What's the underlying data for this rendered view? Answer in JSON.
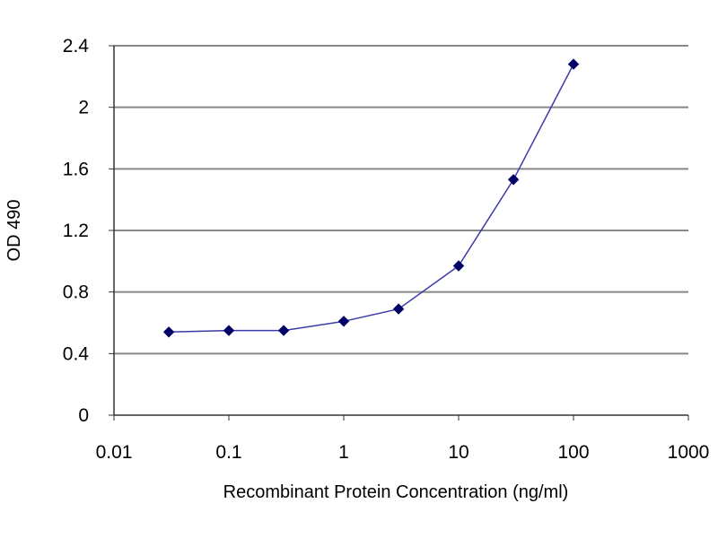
{
  "chart_data": {
    "type": "line",
    "title": "",
    "xlabel": "Recombinant Protein Concentration (ng/ml)",
    "ylabel": "OD 490",
    "x_scale": "log",
    "xlim": [
      0.01,
      1000
    ],
    "ylim": [
      0,
      2.4
    ],
    "x_ticks": [
      "0.01",
      "0.1",
      "1",
      "10",
      "100",
      "1000"
    ],
    "y_ticks": [
      "0",
      "0.4",
      "0.8",
      "1.2",
      "1.6",
      "2",
      "2.4"
    ],
    "grid": "horizontal",
    "legend": "none",
    "series": [
      {
        "x": [
          0.03,
          0.1,
          0.3,
          1,
          3,
          10,
          30,
          100
        ],
        "values": [
          0.54,
          0.55,
          0.55,
          0.61,
          0.69,
          0.97,
          1.53,
          2.28
        ],
        "color": "#3a3aa8",
        "marker_color": "#000066"
      }
    ],
    "colors": {
      "plot_bg": "#ffffff",
      "grid": "#888888",
      "axis": "#333333"
    }
  }
}
